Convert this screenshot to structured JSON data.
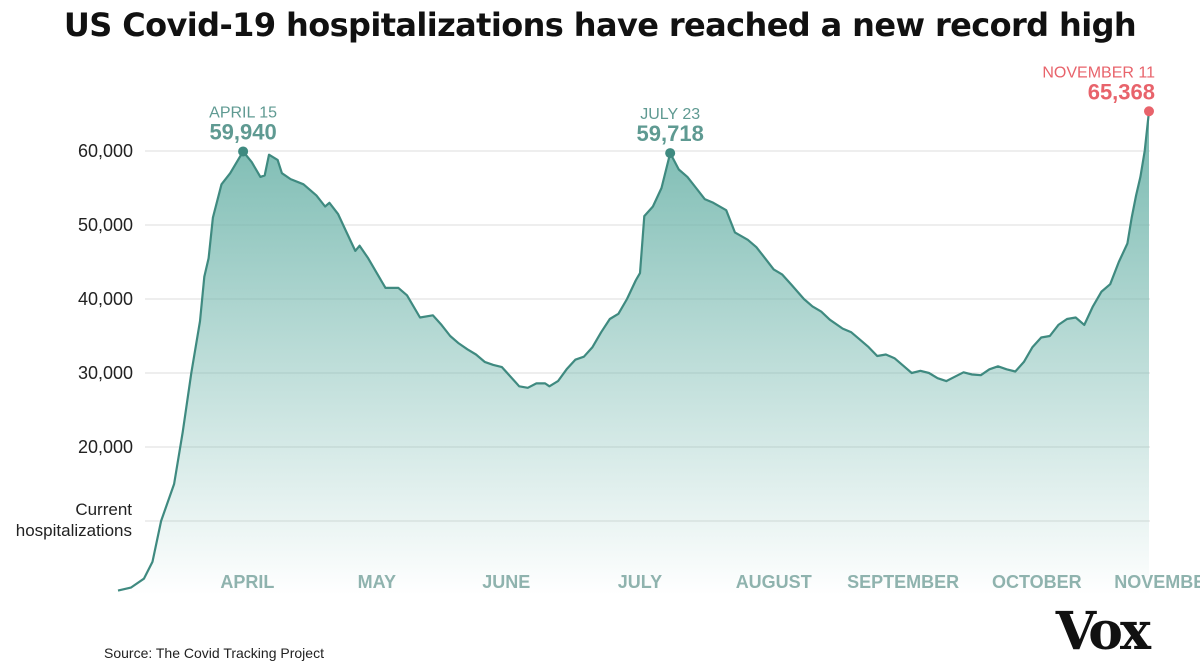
{
  "header": {
    "title": "US Covid-19 hospitalizations have reached a new record high"
  },
  "footer": {
    "source": "Source: The Covid Tracking Project",
    "logo": "Vox"
  },
  "colors": {
    "line": "#3f8a80",
    "fill": "#6fb5ab",
    "highlight": "#e8636b",
    "axis_label": "#8fb3ae",
    "grid": "#dddddd"
  },
  "chart_data": {
    "type": "area",
    "title": "US Covid-19 hospitalizations have reached a new record high",
    "ylabel": "Current hospitalizations",
    "ylim": [
      0,
      66000
    ],
    "yticks": [
      20000,
      30000,
      40000,
      50000,
      60000
    ],
    "ytick_labels": [
      "20,000",
      "30,000",
      "40,000",
      "50,000",
      "60,000"
    ],
    "xlim": [
      "2020-03-17",
      "2020-11-11"
    ],
    "xticks": [
      {
        "label": "APRIL",
        "date": "2020-04-16"
      },
      {
        "label": "MAY",
        "date": "2020-05-16"
      },
      {
        "label": "JUNE",
        "date": "2020-06-15"
      },
      {
        "label": "JULY",
        "date": "2020-07-16"
      },
      {
        "label": "AUGUST",
        "date": "2020-08-16"
      },
      {
        "label": "SEPTEMBER",
        "date": "2020-09-15"
      },
      {
        "label": "OCTOBER",
        "date": "2020-10-16"
      },
      {
        "label": "NOVEMBER",
        "date": "2020-11-15"
      }
    ],
    "grid": true,
    "series": [
      {
        "points": [
          [
            "2020-03-17",
            600
          ],
          [
            "2020-03-20",
            1000
          ],
          [
            "2020-03-23",
            2200
          ],
          [
            "2020-03-25",
            4500
          ],
          [
            "2020-03-27",
            10000
          ],
          [
            "2020-03-30",
            15000
          ],
          [
            "2020-04-01",
            22000
          ],
          [
            "2020-04-03",
            30000
          ],
          [
            "2020-04-05",
            37000
          ],
          [
            "2020-04-06",
            43000
          ],
          [
            "2020-04-07",
            45500
          ],
          [
            "2020-04-08",
            51000
          ],
          [
            "2020-04-10",
            55500
          ],
          [
            "2020-04-12",
            57000
          ],
          [
            "2020-04-15",
            59940
          ],
          [
            "2020-04-17",
            58500
          ],
          [
            "2020-04-19",
            56500
          ],
          [
            "2020-04-20",
            56700
          ],
          [
            "2020-04-21",
            59500
          ],
          [
            "2020-04-23",
            58800
          ],
          [
            "2020-04-24",
            57000
          ],
          [
            "2020-04-26",
            56200
          ],
          [
            "2020-04-29",
            55500
          ],
          [
            "2020-05-02",
            54000
          ],
          [
            "2020-05-04",
            52500
          ],
          [
            "2020-05-05",
            53000
          ],
          [
            "2020-05-07",
            51500
          ],
          [
            "2020-05-09",
            49000
          ],
          [
            "2020-05-11",
            46500
          ],
          [
            "2020-05-12",
            47200
          ],
          [
            "2020-05-14",
            45500
          ],
          [
            "2020-05-16",
            43500
          ],
          [
            "2020-05-18",
            41500
          ],
          [
            "2020-05-21",
            41500
          ],
          [
            "2020-05-23",
            40500
          ],
          [
            "2020-05-26",
            37500
          ],
          [
            "2020-05-29",
            37800
          ],
          [
            "2020-05-31",
            36500
          ],
          [
            "2020-06-02",
            35000
          ],
          [
            "2020-06-04",
            34000
          ],
          [
            "2020-06-06",
            33200
          ],
          [
            "2020-06-08",
            32500
          ],
          [
            "2020-06-10",
            31500
          ],
          [
            "2020-06-12",
            31100
          ],
          [
            "2020-06-14",
            30800
          ],
          [
            "2020-06-16",
            29500
          ],
          [
            "2020-06-18",
            28200
          ],
          [
            "2020-06-20",
            28000
          ],
          [
            "2020-06-22",
            28600
          ],
          [
            "2020-06-24",
            28600
          ],
          [
            "2020-06-25",
            28200
          ],
          [
            "2020-06-27",
            28900
          ],
          [
            "2020-06-29",
            30500
          ],
          [
            "2020-07-01",
            31800
          ],
          [
            "2020-07-03",
            32200
          ],
          [
            "2020-07-05",
            33500
          ],
          [
            "2020-07-07",
            35500
          ],
          [
            "2020-07-09",
            37300
          ],
          [
            "2020-07-11",
            38000
          ],
          [
            "2020-07-13",
            40000
          ],
          [
            "2020-07-15",
            42500
          ],
          [
            "2020-07-16",
            43500
          ],
          [
            "2020-07-17",
            51200
          ],
          [
            "2020-07-19",
            52500
          ],
          [
            "2020-07-21",
            55000
          ],
          [
            "2020-07-23",
            59718
          ],
          [
            "2020-07-25",
            57500
          ],
          [
            "2020-07-27",
            56500
          ],
          [
            "2020-07-29",
            55000
          ],
          [
            "2020-07-31",
            53500
          ],
          [
            "2020-08-02",
            53000
          ],
          [
            "2020-08-05",
            52000
          ],
          [
            "2020-08-07",
            49000
          ],
          [
            "2020-08-10",
            48000
          ],
          [
            "2020-08-12",
            47000
          ],
          [
            "2020-08-14",
            45500
          ],
          [
            "2020-08-16",
            44000
          ],
          [
            "2020-08-18",
            43300
          ],
          [
            "2020-08-20",
            42000
          ],
          [
            "2020-08-23",
            40000
          ],
          [
            "2020-08-25",
            39000
          ],
          [
            "2020-08-27",
            38300
          ],
          [
            "2020-08-29",
            37200
          ],
          [
            "2020-09-01",
            36000
          ],
          [
            "2020-09-03",
            35500
          ],
          [
            "2020-09-05",
            34500
          ],
          [
            "2020-09-07",
            33500
          ],
          [
            "2020-09-09",
            32300
          ],
          [
            "2020-09-11",
            32500
          ],
          [
            "2020-09-13",
            32000
          ],
          [
            "2020-09-15",
            31000
          ],
          [
            "2020-09-17",
            30000
          ],
          [
            "2020-09-19",
            30300
          ],
          [
            "2020-09-21",
            30000
          ],
          [
            "2020-09-23",
            29300
          ],
          [
            "2020-09-25",
            28900
          ],
          [
            "2020-09-27",
            29500
          ],
          [
            "2020-09-29",
            30100
          ],
          [
            "2020-10-01",
            29800
          ],
          [
            "2020-10-03",
            29700
          ],
          [
            "2020-10-05",
            30500
          ],
          [
            "2020-10-07",
            30900
          ],
          [
            "2020-10-09",
            30500
          ],
          [
            "2020-10-11",
            30200
          ],
          [
            "2020-10-13",
            31500
          ],
          [
            "2020-10-15",
            33500
          ],
          [
            "2020-10-17",
            34800
          ],
          [
            "2020-10-19",
            35000
          ],
          [
            "2020-10-21",
            36500
          ],
          [
            "2020-10-23",
            37300
          ],
          [
            "2020-10-25",
            37500
          ],
          [
            "2020-10-27",
            36500
          ],
          [
            "2020-10-29",
            39000
          ],
          [
            "2020-10-31",
            41000
          ],
          [
            "2020-11-02",
            42000
          ],
          [
            "2020-11-04",
            45000
          ],
          [
            "2020-11-06",
            47500
          ],
          [
            "2020-11-07",
            51000
          ],
          [
            "2020-11-08",
            54000
          ],
          [
            "2020-11-09",
            56500
          ],
          [
            "2020-11-10",
            60000
          ],
          [
            "2020-11-11",
            65368
          ]
        ]
      }
    ],
    "annotations": [
      {
        "date": "2020-04-15",
        "value": 59940,
        "date_label": "APRIL 15",
        "value_label": "59,940",
        "highlight": false
      },
      {
        "date": "2020-07-23",
        "value": 59718,
        "date_label": "JULY 23",
        "value_label": "59,718",
        "highlight": false
      },
      {
        "date": "2020-11-11",
        "value": 65368,
        "date_label": "NOVEMBER 11",
        "value_label": "65,368",
        "highlight": true
      }
    ]
  }
}
